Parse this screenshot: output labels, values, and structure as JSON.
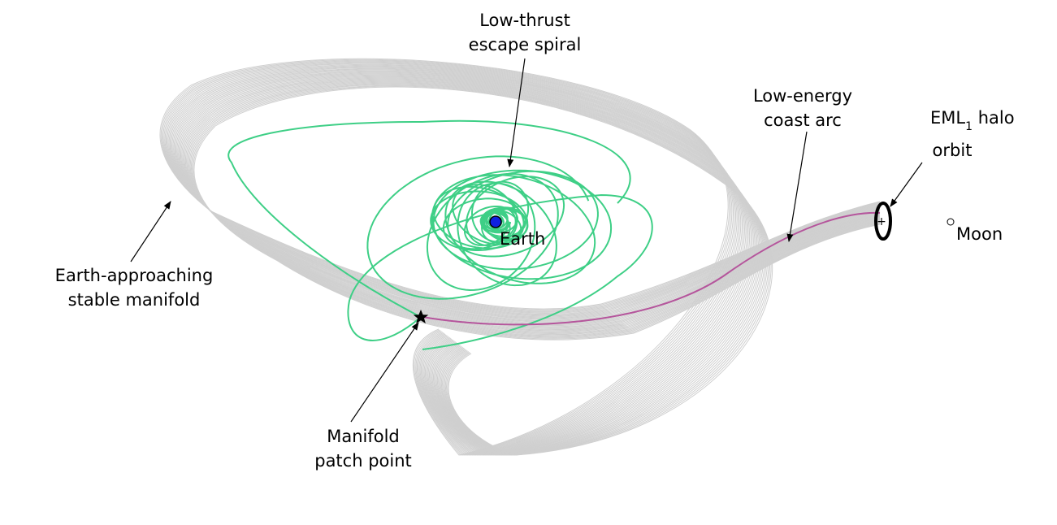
{
  "labels": {
    "spiral_line1": "Low-thrust",
    "spiral_line2": "escape spiral",
    "coast_line1": "Low-energy",
    "coast_line2": "coast arc",
    "halo_prefix": "EML",
    "halo_subscript": "1",
    "halo_suffix": " halo",
    "halo_line2": "orbit",
    "manifold_line1": "Earth-approaching",
    "manifold_line2": "stable manifold",
    "patch_line1": "Manifold",
    "patch_line2": "patch point",
    "earth": "Earth",
    "moon": "Moon"
  },
  "colors": {
    "manifold": "#cfcfcf",
    "spiral": "#3ecf86",
    "coast_arc": "#b5559c",
    "earth": "#1020e0",
    "halo": "#000000"
  }
}
